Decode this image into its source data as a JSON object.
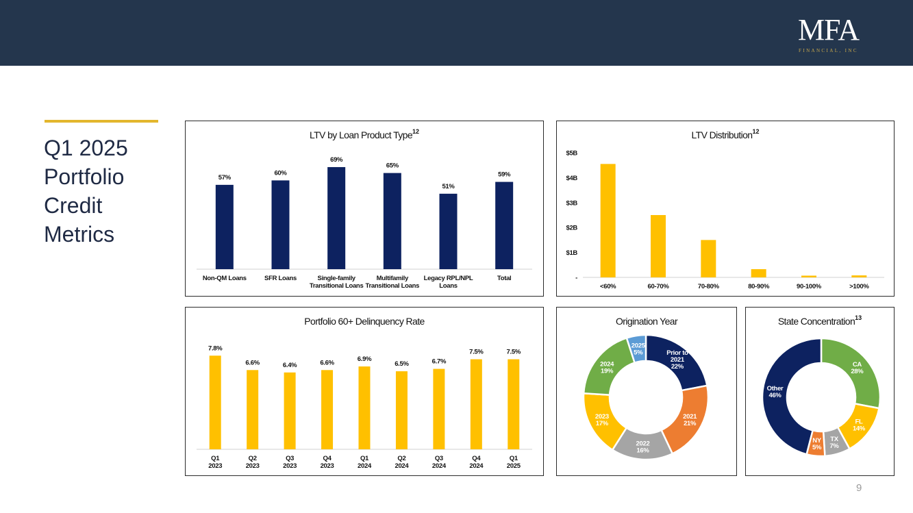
{
  "colors": {
    "header": "#24364d",
    "navy": "#0d2260",
    "gold": "#ffc000",
    "accent_line": "#e3b62d",
    "orange": "#ed7d31",
    "gray": "#a5a5a5",
    "green": "#70ad47",
    "blue": "#5b9bd5"
  },
  "logo": {
    "main": "MFA",
    "sub": "FINANCIAL, INC"
  },
  "page": {
    "title": "Q1 2025\nPortfolio\nCredit\nMetrics",
    "number": "9"
  },
  "chart_data": [
    {
      "id": "ltv-product",
      "type": "bar",
      "title": "LTV by Loan Product Type",
      "title_sup": "12",
      "categories": [
        [
          "Non-QM Loans"
        ],
        [
          "SFR Loans"
        ],
        [
          "Single-family",
          "Transitional Loans"
        ],
        [
          "Multifamily",
          "Transitional Loans"
        ],
        [
          "Legacy RPL/NPL",
          "Loans"
        ],
        [
          "Total"
        ]
      ],
      "values": [
        57,
        60,
        69,
        65,
        51,
        59
      ],
      "labels": [
        "57%",
        "60%",
        "69%",
        "65%",
        "51%",
        "59%"
      ],
      "ylim": [
        0,
        75
      ],
      "color": "#0d2260"
    },
    {
      "id": "ltv-dist",
      "type": "bar",
      "title": "LTV Distribution",
      "title_sup": "12",
      "categories": [
        [
          "<60%"
        ],
        [
          "60-70%"
        ],
        [
          "70-80%"
        ],
        [
          "80-90%"
        ],
        [
          "90-100%"
        ],
        [
          ">100%"
        ]
      ],
      "values": [
        4.55,
        2.5,
        1.5,
        0.33,
        0.07,
        0.08
      ],
      "ylim": [
        0,
        5
      ],
      "yticks": [
        0,
        1,
        2,
        3,
        4,
        5
      ],
      "ytick_labels": [
        "-",
        "$1B",
        "$2B",
        "$3B",
        "$4B",
        "$5B"
      ],
      "color": "#ffc000"
    },
    {
      "id": "delinquency",
      "type": "bar",
      "title": "Portfolio 60+ Delinquency Rate",
      "title_sup": "",
      "categories": [
        [
          "Q1",
          "2023"
        ],
        [
          "Q2",
          "2023"
        ],
        [
          "Q3",
          "2023"
        ],
        [
          "Q4",
          "2023"
        ],
        [
          "Q1",
          "2024"
        ],
        [
          "Q2",
          "2024"
        ],
        [
          "Q3",
          "2024"
        ],
        [
          "Q4",
          "2024"
        ],
        [
          "Q1",
          "2025"
        ]
      ],
      "values": [
        7.8,
        6.6,
        6.4,
        6.6,
        6.9,
        6.5,
        6.7,
        7.5,
        7.5
      ],
      "labels": [
        "7.8%",
        "6.6%",
        "6.4%",
        "6.6%",
        "6.9%",
        "6.5%",
        "6.7%",
        "7.5%",
        "7.5%"
      ],
      "ylim": [
        0,
        8.5
      ],
      "color": "#ffc000"
    },
    {
      "id": "origination",
      "type": "pie",
      "title": "Origination Year",
      "title_sup": "",
      "slices": [
        {
          "label": [
            "Prior to",
            "2021",
            "22%"
          ],
          "value": 22,
          "color": "#0d2260"
        },
        {
          "label": [
            "2021",
            "21%"
          ],
          "value": 21,
          "color": "#ed7d31"
        },
        {
          "label": [
            "2022",
            "16%"
          ],
          "value": 16,
          "color": "#a5a5a5"
        },
        {
          "label": [
            "2023",
            "17%"
          ],
          "value": 17,
          "color": "#ffc000"
        },
        {
          "label": [
            "2024",
            "19%"
          ],
          "value": 19,
          "color": "#70ad47"
        },
        {
          "label": [
            "2025",
            "5%"
          ],
          "value": 5,
          "color": "#5b9bd5"
        }
      ]
    },
    {
      "id": "state",
      "type": "pie",
      "title": "State Concentration",
      "title_sup": "13",
      "slices": [
        {
          "label": [
            "CA",
            "28%"
          ],
          "value": 28,
          "color": "#70ad47"
        },
        {
          "label": [
            "FL",
            "14%"
          ],
          "value": 14,
          "color": "#ffc000"
        },
        {
          "label": [
            "TX",
            "7%"
          ],
          "value": 7,
          "color": "#a5a5a5"
        },
        {
          "label": [
            "NY",
            "5%"
          ],
          "value": 5,
          "color": "#ed7d31"
        },
        {
          "label": [
            "Other",
            "46%"
          ],
          "value": 46,
          "color": "#0d2260"
        }
      ]
    }
  ]
}
